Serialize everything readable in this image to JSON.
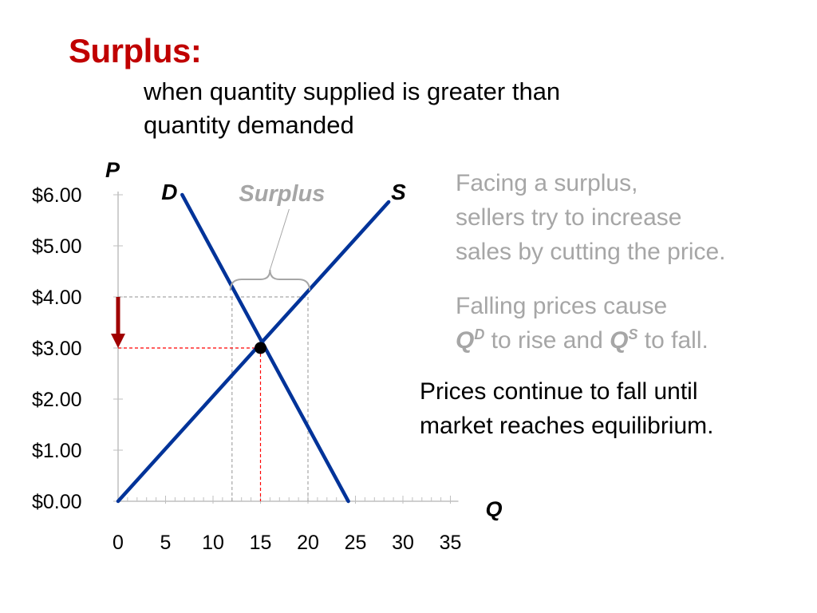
{
  "header": {
    "title": "Surplus:",
    "subtitle_line1": "when quantity supplied is greater than",
    "subtitle_line2": "quantity demanded"
  },
  "annotations": {
    "block1_line1": "Facing a surplus,",
    "block1_line2": "sellers try to increase",
    "block1_line3": "sales by cutting the price.",
    "block2_line1": "Falling prices cause",
    "block2_qd": "Q",
    "block2_qd_sup": "D",
    "block2_mid": " to rise and ",
    "block2_qs": "Q",
    "block2_qs_sup": "S",
    "block2_end": " to fall.",
    "block3_line1": "Prices continue to fall until",
    "block3_line2": "market reaches equilibrium."
  },
  "colors": {
    "title": "#c00000",
    "curves": "#003399",
    "guide_red": "#ff0000",
    "guide_gray": "#a6a6a6",
    "arrow": "#a00000",
    "note_gray": "#a6a6a6"
  },
  "chart_data": {
    "type": "line",
    "xlabel": "Q",
    "ylabel": "P",
    "xlim": [
      0,
      35
    ],
    "ylim": [
      0,
      6
    ],
    "x_ticks": [
      0,
      5,
      10,
      15,
      20,
      25,
      30,
      35
    ],
    "x_tick_labels": [
      "0",
      "5",
      "10",
      "15",
      "20",
      "25",
      "30",
      "35"
    ],
    "y_ticks": [
      0,
      1,
      2,
      3,
      4,
      5,
      6
    ],
    "y_tick_labels": [
      "$0.00",
      "$1.00",
      "$2.00",
      "$3.00",
      "$4.00",
      "$5.00",
      "$6.00"
    ],
    "series": [
      {
        "name": "D",
        "x": [
          6.75,
          24.25
        ],
        "y": [
          6.0,
          0.0
        ],
        "label_at": [
          6.75,
          6.0
        ]
      },
      {
        "name": "S",
        "x": [
          0,
          28.5
        ],
        "y": [
          0.0,
          5.86
        ],
        "label_at": [
          29.2,
          6.0
        ]
      }
    ],
    "equilibrium": {
      "q": 15,
      "p": 3.0
    },
    "surplus": {
      "label": "Surplus",
      "price": 4.0,
      "qd": 12,
      "qs": 20
    },
    "price_arrow": {
      "from": 4.0,
      "to": 3.0
    }
  }
}
